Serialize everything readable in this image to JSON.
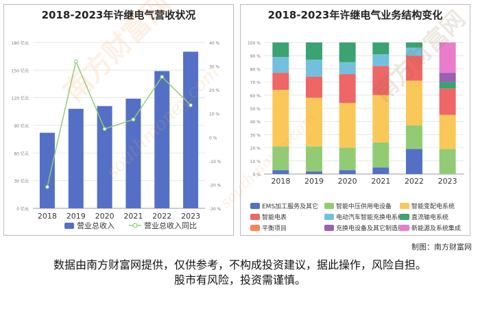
{
  "credit": "制图：南方财富网",
  "disclaimer": {
    "line1": "数据由南方财富网提供，仅供参考，不构成投资建议，据此操作，风险自担。",
    "line2": "股市有风险，投资需谨慎。"
  },
  "watermark": {
    "main": "南方财富网",
    "url": "southmoney.com"
  },
  "chart_data": [
    {
      "type": "bar",
      "title": "2018-2023年许继电气营收状况",
      "categories": [
        "2018",
        "2019",
        "2020",
        "2021",
        "2022",
        "2023"
      ],
      "series": [
        {
          "name": "营业总收入",
          "type": "bar",
          "axis": "left",
          "values": [
            82,
            108,
            111,
            119,
            149,
            170
          ]
        },
        {
          "name": "营业总收入同比",
          "type": "line",
          "axis": "right",
          "values": [
            -21,
            32,
            3.5,
            7.5,
            25.5,
            13.5
          ]
        }
      ],
      "left_axis": {
        "ticks": [
          "0 亿元",
          "30 亿元",
          "60 亿元",
          "90 亿元",
          "120 亿元",
          "150 亿元",
          "180 亿元"
        ],
        "ylim": [
          0,
          180
        ]
      },
      "right_axis": {
        "ticks": [
          "-30 %",
          "-20 %",
          "-10 %",
          "0 %",
          "10 %",
          "20 %",
          "30 %",
          "40 %"
        ],
        "ylim": [
          -30,
          40
        ]
      },
      "grid": true,
      "legend": "bottom",
      "colors": {
        "bar": "#5470c6",
        "line": "#91cc75"
      }
    },
    {
      "type": "bar",
      "stacked": true,
      "title": "2018-2023年许继电气业务结构变化",
      "categories": [
        "2018",
        "2019",
        "2020",
        "2021",
        "2022",
        "2023"
      ],
      "y_ticks": [
        "0 %",
        "10 %",
        "20 %",
        "30 %",
        "40 %",
        "50 %",
        "60 %",
        "70 %",
        "80 %",
        "90 %",
        "100 %"
      ],
      "ylim": [
        0,
        100
      ],
      "legend": "bottom",
      "series": [
        {
          "name": "EMS加工服务及其它",
          "color": "#5470c6",
          "values": [
            3,
            2,
            3,
            5,
            19,
            0
          ]
        },
        {
          "name": "智能中压供用电设备",
          "color": "#91cc75",
          "values": [
            18,
            19,
            17,
            19,
            18,
            19
          ]
        },
        {
          "name": "智能变配电系统",
          "color": "#fac858",
          "values": [
            43,
            37,
            34,
            36,
            34,
            26
          ]
        },
        {
          "name": "智能电表",
          "color": "#ee6666",
          "values": [
            13,
            16,
            22,
            22,
            19,
            20
          ]
        },
        {
          "name": "电动汽车智能充换电系统",
          "color": "#73c0de",
          "values": [
            12,
            13,
            9,
            9,
            6,
            0
          ]
        },
        {
          "name": "直流输电系统",
          "color": "#3ba272",
          "values": [
            11,
            13,
            15,
            9,
            4,
            5
          ]
        },
        {
          "name": "平衡项目",
          "color": "#fc8452",
          "values": [
            0,
            0,
            0,
            0,
            0,
            0
          ]
        },
        {
          "name": "充换电设备及其它制造服务",
          "color": "#9a60b4",
          "values": [
            0,
            0,
            0,
            0,
            0,
            7
          ]
        },
        {
          "name": "新能源及系统集成",
          "color": "#ea7ccc",
          "values": [
            0,
            0,
            0,
            0,
            0,
            23
          ]
        }
      ]
    }
  ]
}
